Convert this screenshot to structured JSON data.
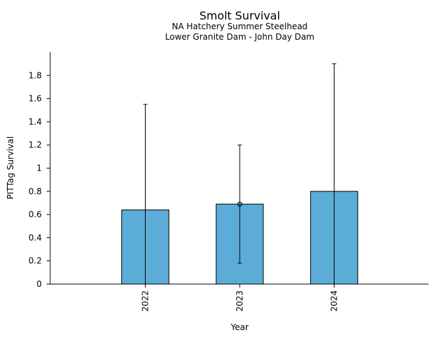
{
  "chart_data": {
    "type": "bar",
    "title": "Smolt Survival",
    "subtitle_lines": [
      "NA Hatchery Summer Steelhead",
      "Lower Granite Dam - John Day Dam"
    ],
    "xlabel": "Year",
    "ylabel": "PITTag Survival",
    "categories": [
      "2022",
      "2023",
      "2024"
    ],
    "values": [
      0.64,
      0.69,
      0.8
    ],
    "error_upper": [
      1.55,
      1.2,
      1.9
    ],
    "error_lower": [
      0.0,
      0.18,
      0.0
    ],
    "point_markers": [
      false,
      true,
      false
    ],
    "ylim": [
      0,
      2.0
    ],
    "yticks": [
      0,
      0.2,
      0.4,
      0.6,
      0.8,
      1,
      1.2,
      1.4,
      1.6,
      1.8
    ],
    "ytick_labels": [
      "0",
      "0.2",
      "0.4",
      "0.6",
      "0.8",
      "1",
      "1.2",
      "1.4",
      "1.6",
      "1.8"
    ],
    "bar_color": "#5BACD6",
    "edge_color": "#000000",
    "grid": false,
    "legend": "none"
  }
}
